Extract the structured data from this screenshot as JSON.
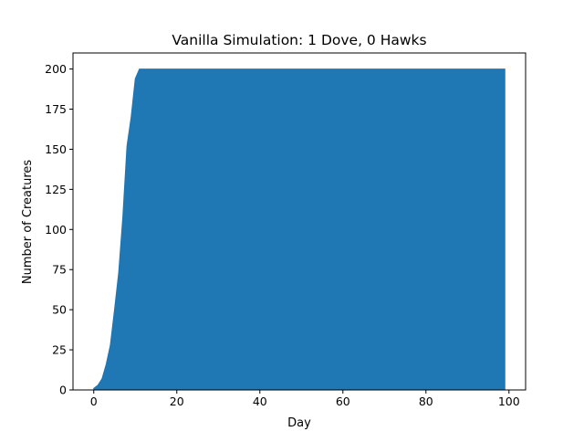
{
  "chart_data": {
    "type": "area",
    "title": "Vanilla Simulation: 1 Dove, 0 Hawks",
    "xlabel": "Day",
    "ylabel": "Number of Creatures",
    "xlim": [
      -5,
      104
    ],
    "ylim": [
      0,
      210
    ],
    "xticks": [
      0,
      20,
      40,
      60,
      80,
      100
    ],
    "yticks": [
      0,
      25,
      50,
      75,
      100,
      125,
      150,
      175,
      200
    ],
    "grid": false,
    "legend": "none",
    "color": "#1f77b4",
    "x": [
      0,
      1,
      2,
      3,
      4,
      5,
      6,
      7,
      8,
      9,
      10,
      11,
      12,
      99
    ],
    "y": [
      1,
      3,
      7,
      16,
      28,
      50,
      73,
      108,
      152,
      170,
      194,
      200,
      200,
      200
    ]
  }
}
